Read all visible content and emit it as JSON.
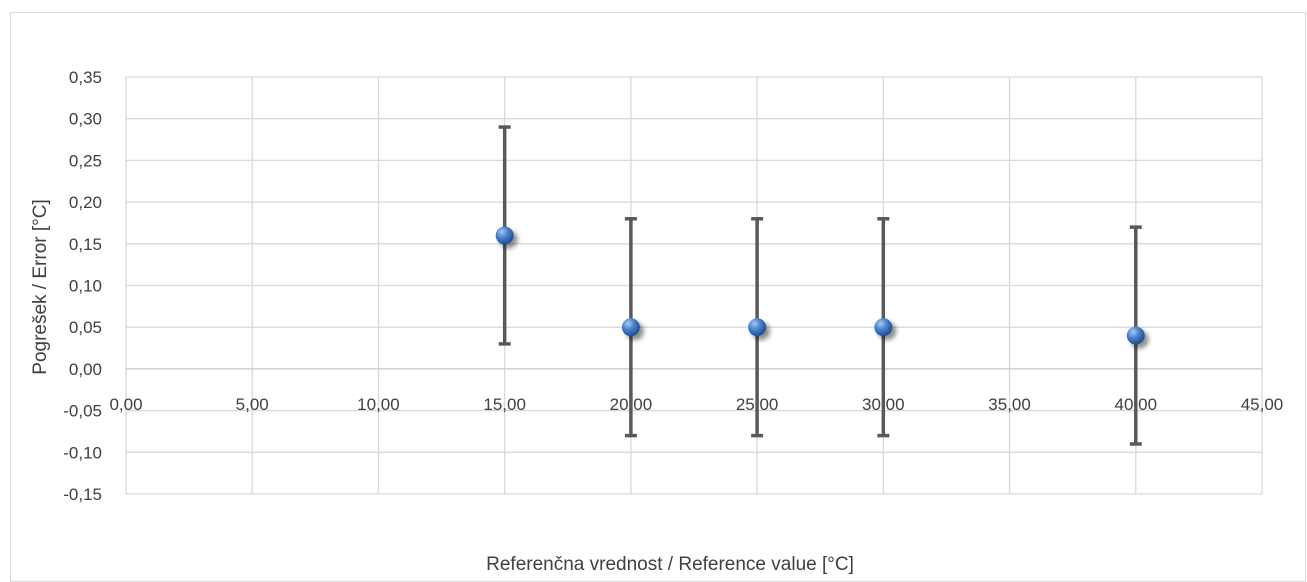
{
  "chart_data": {
    "type": "scatter",
    "title": "",
    "xlabel": "Referenčna vrednost / Reference value [°C]",
    "ylabel": "Pogrešek / Error [°C]",
    "xlim": [
      0,
      45
    ],
    "ylim": [
      -0.15,
      0.35
    ],
    "x_ticks": [
      "0,00",
      "5,00",
      "10,00",
      "15,00",
      "20,00",
      "25,00",
      "30,00",
      "35,00",
      "40,00",
      "45,00"
    ],
    "y_ticks": [
      "0,35",
      "0,30",
      "0,25",
      "0,20",
      "0,15",
      "0,10",
      "0,05",
      "0,00",
      "-0,05",
      "-0,10",
      "-0,15"
    ],
    "grid": true,
    "legend": "none",
    "series": [
      {
        "points": [
          {
            "x": 15,
            "y": 0.16,
            "err_low": 0.03,
            "err_high": 0.29
          },
          {
            "x": 20,
            "y": 0.05,
            "err_low": -0.08,
            "err_high": 0.18
          },
          {
            "x": 25,
            "y": 0.05,
            "err_low": -0.08,
            "err_high": 0.18
          },
          {
            "x": 30,
            "y": 0.05,
            "err_low": -0.08,
            "err_high": 0.18
          },
          {
            "x": 40,
            "y": 0.04,
            "err_low": -0.09,
            "err_high": 0.17
          }
        ]
      }
    ],
    "colors": {
      "marker": "#3b6fb6",
      "marker_light": "#8fb4e8",
      "error_bar": "#595959",
      "grid": "#d9d9d9",
      "text": "#404040"
    }
  }
}
